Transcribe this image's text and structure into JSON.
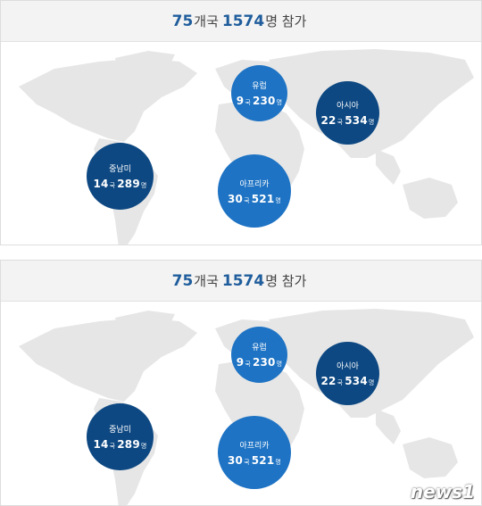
{
  "panels": [
    {
      "header": {
        "countries": "75",
        "countries_unit": "개국",
        "people": "1574",
        "people_unit": "명 참가"
      },
      "regions": [
        {
          "name": "유럽",
          "countries": "9",
          "people": "230"
        },
        {
          "name": "아시아",
          "countries": "22",
          "people": "534"
        },
        {
          "name": "중남미",
          "countries": "14",
          "people": "289"
        },
        {
          "name": "아프리카",
          "countries": "30",
          "people": "521"
        }
      ]
    },
    {
      "header": {
        "countries": "75",
        "countries_unit": "개국",
        "people": "1574",
        "people_unit": "명 참가"
      },
      "regions": [
        {
          "name": "유럽",
          "countries": "9",
          "people": "230"
        },
        {
          "name": "아시아",
          "countries": "22",
          "people": "534"
        },
        {
          "name": "중남미",
          "countries": "14",
          "people": "289"
        },
        {
          "name": "아프리카",
          "countries": "30",
          "people": "521"
        }
      ]
    }
  ],
  "units": {
    "country_suffix": "국",
    "person_suffix": "명"
  },
  "colors": {
    "light_bubble": "#1e73c4",
    "dark_bubble": "#0d4882",
    "accent": "#1f5d9c",
    "land": "#e6e6e6"
  },
  "watermark": "news1"
}
